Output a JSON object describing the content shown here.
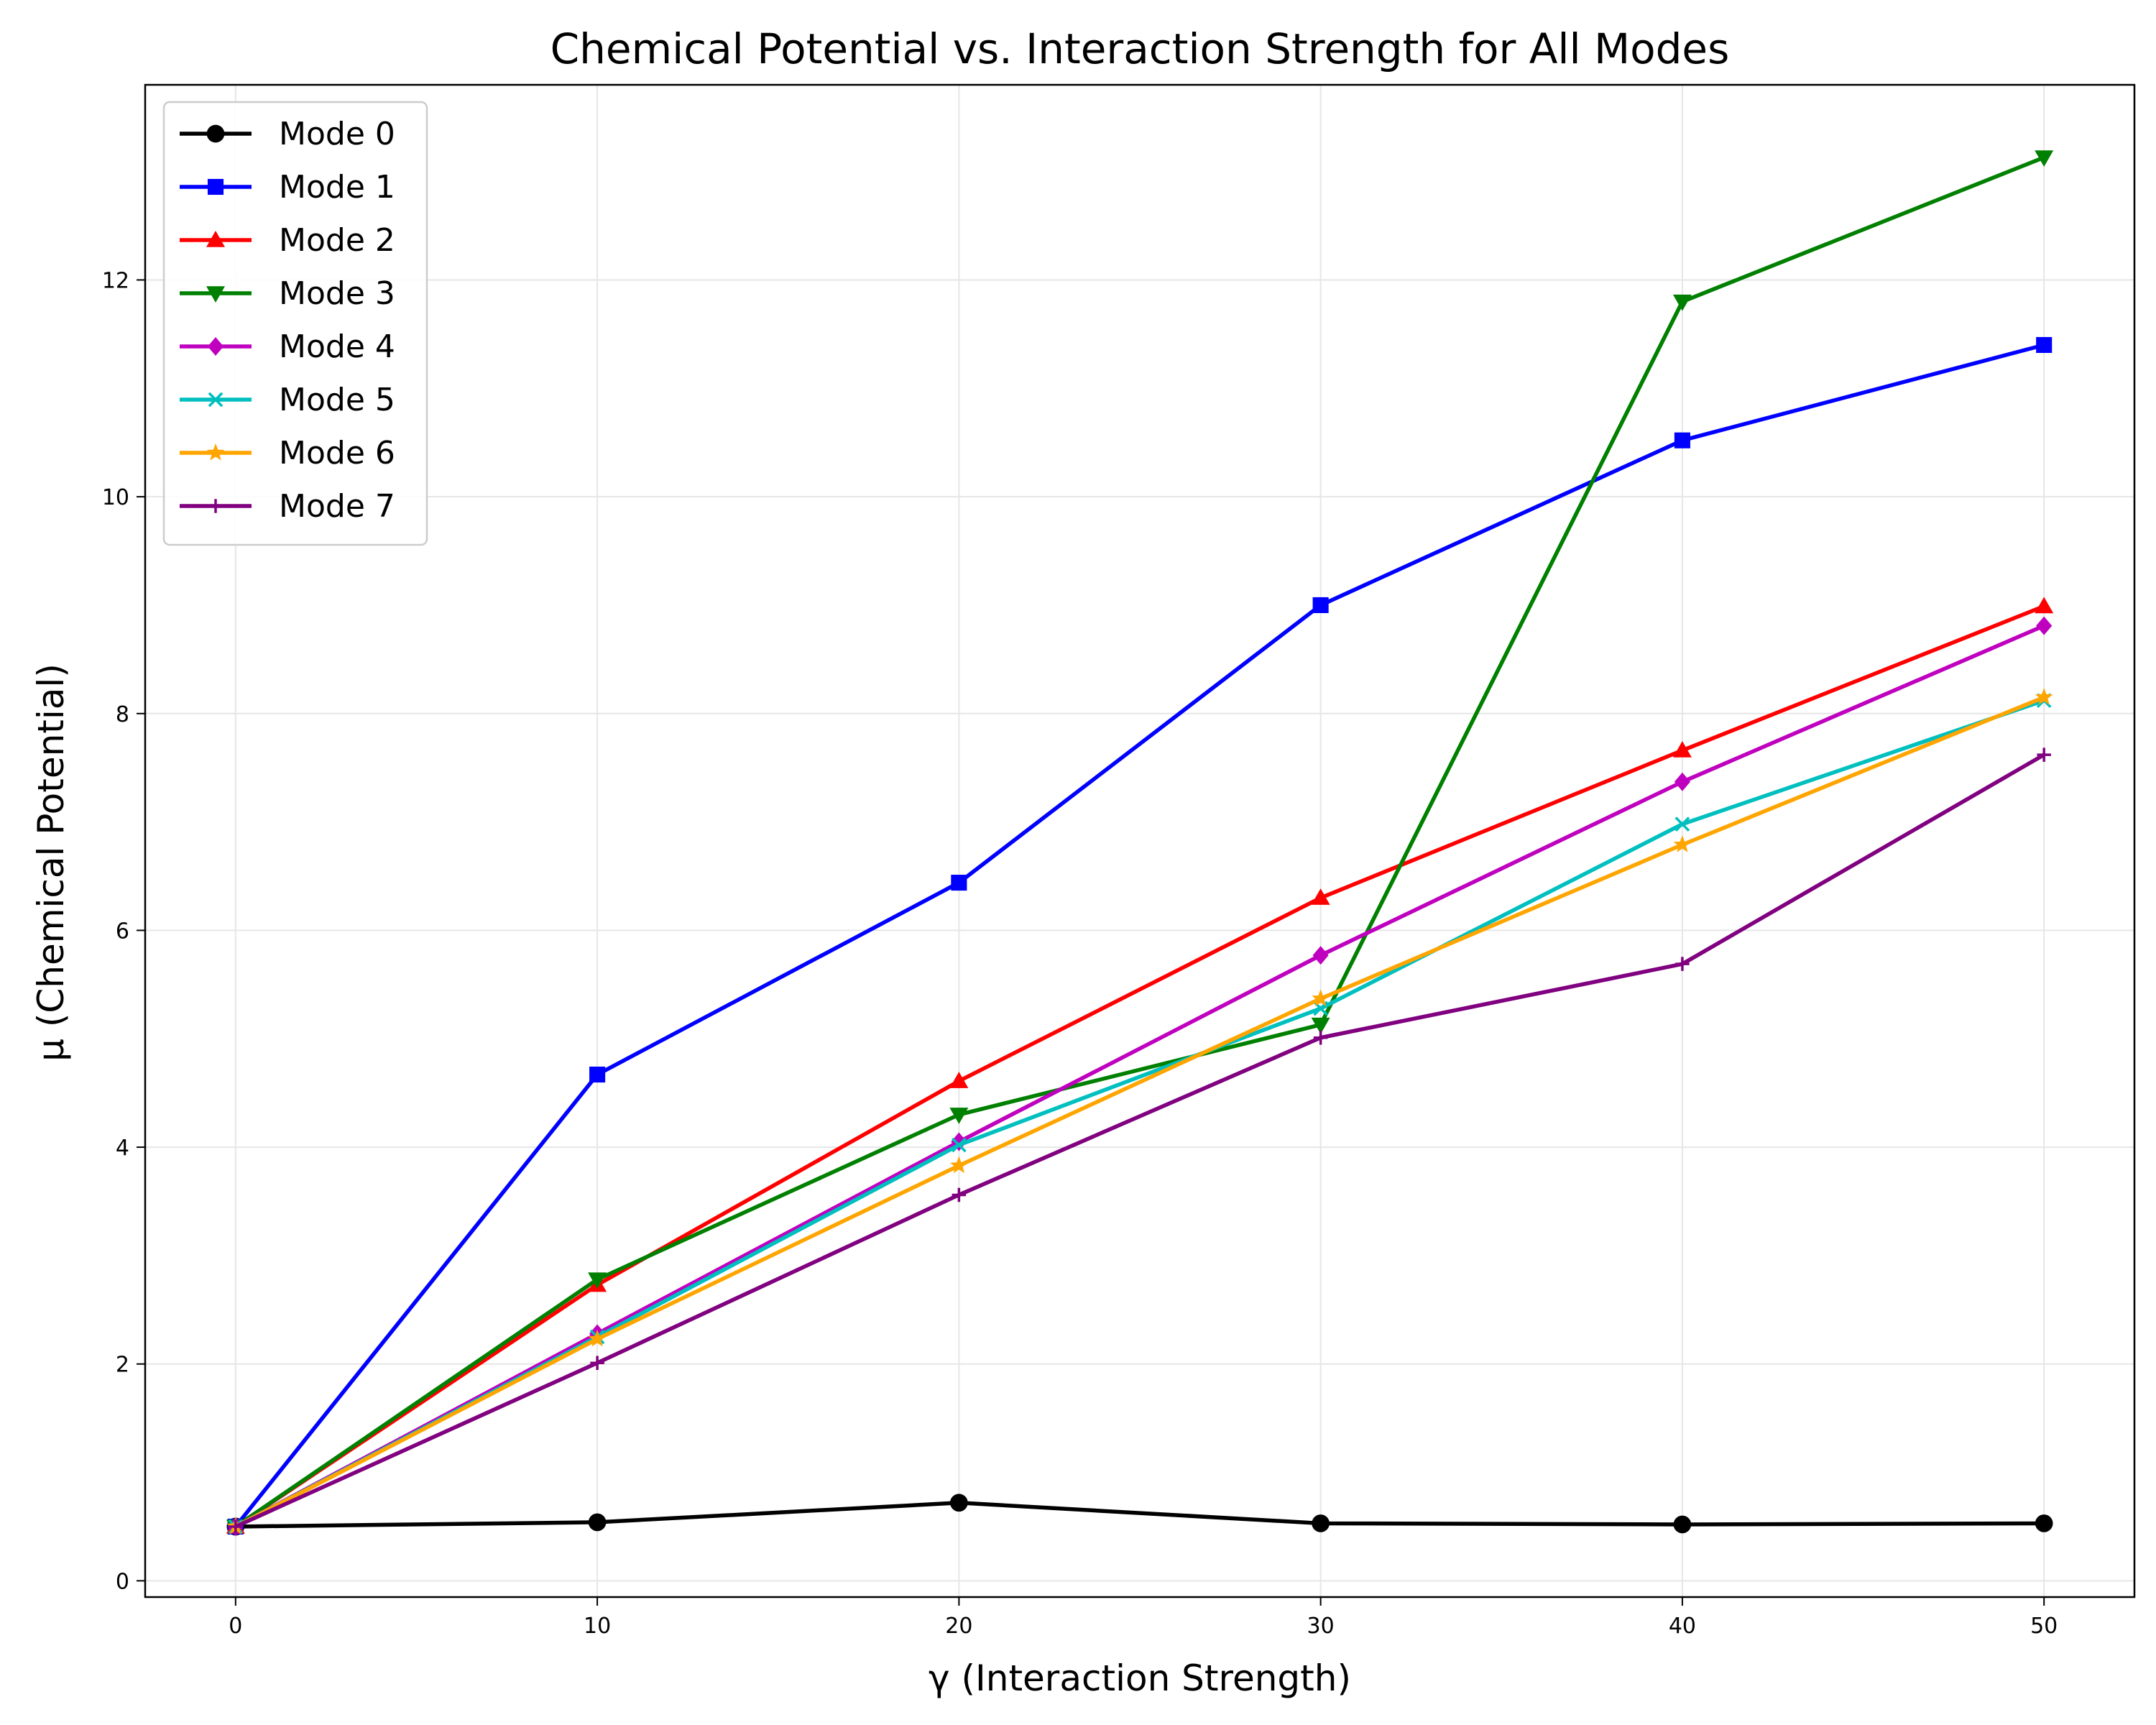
{
  "chart_data": {
    "type": "line",
    "title": "Chemical Potential vs. Interaction Strength for All Modes",
    "xlabel": "γ (Interaction Strength)",
    "ylabel": "μ (Chemical Potential)",
    "x": [
      0,
      10,
      20,
      30,
      40,
      50
    ],
    "xlim": [
      -2.5,
      52.5
    ],
    "ylim": [
      -0.15,
      13.8
    ],
    "xticks": [
      0,
      10,
      20,
      30,
      40,
      50
    ],
    "yticks": [
      0,
      2,
      4,
      6,
      8,
      10,
      12
    ],
    "grid": true,
    "legend_position": "top-left",
    "series": [
      {
        "name": "Mode 0",
        "color": "#000000",
        "marker": "circle",
        "values": [
          0.5,
          0.54,
          0.72,
          0.53,
          0.52,
          0.53
        ]
      },
      {
        "name": "Mode 1",
        "color": "#0000ff",
        "marker": "square",
        "values": [
          0.5,
          4.67,
          6.44,
          9.0,
          10.52,
          11.4
        ]
      },
      {
        "name": "Mode 2",
        "color": "#ff0000",
        "marker": "triangle-up",
        "values": [
          0.5,
          2.73,
          4.61,
          6.3,
          7.66,
          8.99
        ]
      },
      {
        "name": "Mode 3",
        "color": "#008000",
        "marker": "triangle-down",
        "values": [
          0.5,
          2.78,
          4.3,
          5.13,
          11.8,
          13.13
        ]
      },
      {
        "name": "Mode 4",
        "color": "#bf00bf",
        "marker": "diamond",
        "values": [
          0.5,
          2.28,
          4.05,
          5.77,
          7.37,
          8.81
        ]
      },
      {
        "name": "Mode 5",
        "color": "#00bfbf",
        "marker": "x",
        "values": [
          0.5,
          2.25,
          4.02,
          5.28,
          6.98,
          8.12
        ]
      },
      {
        "name": "Mode 6",
        "color": "#ffa500",
        "marker": "star",
        "values": [
          0.5,
          2.23,
          3.83,
          5.37,
          6.79,
          8.15
        ]
      },
      {
        "name": "Mode 7",
        "color": "#800080",
        "marker": "plus",
        "values": [
          0.5,
          2.01,
          3.56,
          5.01,
          5.69,
          7.62
        ]
      }
    ]
  }
}
